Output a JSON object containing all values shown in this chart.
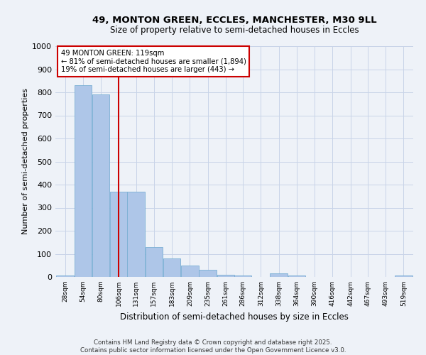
{
  "title1": "49, MONTON GREEN, ECCLES, MANCHESTER, M30 9LL",
  "title2": "Size of property relative to semi-detached houses in Eccles",
  "xlabel": "Distribution of semi-detached houses by size in Eccles",
  "ylabel": "Number of semi-detached properties",
  "footnote1": "Contains HM Land Registry data © Crown copyright and database right 2025.",
  "footnote2": "Contains public sector information licensed under the Open Government Licence v3.0.",
  "annotation_line1": "49 MONTON GREEN: 119sqm",
  "annotation_line2": "← 81% of semi-detached houses are smaller (1,894)",
  "annotation_line3": "19% of semi-detached houses are larger (443) →",
  "subject_value": 119,
  "bins": [
    28,
    54,
    80,
    106,
    131,
    157,
    183,
    209,
    235,
    261,
    286,
    312,
    338,
    364,
    390,
    416,
    442,
    467,
    493,
    519,
    545
  ],
  "counts": [
    5,
    830,
    790,
    370,
    370,
    130,
    80,
    50,
    30,
    10,
    5,
    0,
    15,
    5,
    0,
    0,
    0,
    0,
    0,
    5,
    0
  ],
  "bar_color": "#aec6e8",
  "bar_edge_color": "#7aafd4",
  "vline_color": "#cc0000",
  "box_edge_color": "#cc0000",
  "box_face_color": "#ffffff",
  "background_color": "#eef2f8",
  "grid_color": "#c8d4e8",
  "ylim": [
    0,
    1000
  ],
  "yticks": [
    0,
    100,
    200,
    300,
    400,
    500,
    600,
    700,
    800,
    900,
    1000
  ]
}
